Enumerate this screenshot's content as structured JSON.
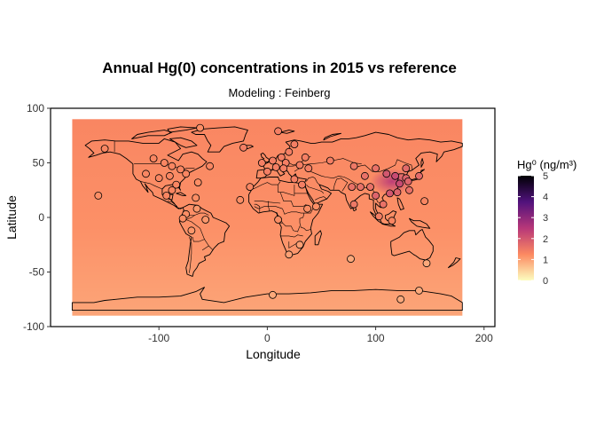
{
  "chart_data": {
    "type": "heatmap",
    "title": "Annual Hg(0) concentrations in 2015 vs reference",
    "subtitle": "Modeling : Feinberg",
    "xlabel": "Longitude",
    "ylabel": "Latitude",
    "xlim": [
      -200,
      210
    ],
    "ylim": [
      -100,
      100
    ],
    "x_ticks": [
      -100,
      0,
      100,
      200
    ],
    "y_ticks": [
      -100,
      -50,
      0,
      50,
      100
    ],
    "legend": {
      "title": "Hg⁰ (ng/m³)",
      "ticks": [
        0,
        1,
        2,
        3,
        4,
        5
      ],
      "range": [
        0,
        5
      ],
      "placement": "right",
      "colors": [
        "#fcfdbf",
        "#fc8961",
        "#b73779",
        "#51127c",
        "#000004"
      ]
    },
    "field": {
      "north_value": 1.3,
      "south_value": 0.95,
      "hotspot": {
        "lon": 115,
        "lat": 33,
        "value": 2.4
      }
    },
    "stations": [
      {
        "lon": -62,
        "lat": 82,
        "value": 1.2
      },
      {
        "lon": -150,
        "lat": 63,
        "value": 1.3
      },
      {
        "lon": -105,
        "lat": 54,
        "value": 1.3
      },
      {
        "lon": -95,
        "lat": 50,
        "value": 1.3
      },
      {
        "lon": -88,
        "lat": 47,
        "value": 1.3
      },
      {
        "lon": -80,
        "lat": 44,
        "value": 1.3
      },
      {
        "lon": -75,
        "lat": 40,
        "value": 1.3
      },
      {
        "lon": -90,
        "lat": 38,
        "value": 1.3
      },
      {
        "lon": -100,
        "lat": 36,
        "value": 1.3
      },
      {
        "lon": -112,
        "lat": 40,
        "value": 1.3
      },
      {
        "lon": -84,
        "lat": 30,
        "value": 1.3
      },
      {
        "lon": -88,
        "lat": 25,
        "value": 1.3
      },
      {
        "lon": -93,
        "lat": 20,
        "value": 1.3
      },
      {
        "lon": -156,
        "lat": 20,
        "value": 1.2
      },
      {
        "lon": -66,
        "lat": 18,
        "value": 1.2
      },
      {
        "lon": -64,
        "lat": 32,
        "value": 1.2
      },
      {
        "lon": -53,
        "lat": 47,
        "value": 1.3
      },
      {
        "lon": -65,
        "lat": 8,
        "value": 1.1
      },
      {
        "lon": -75,
        "lat": 3,
        "value": 1.2
      },
      {
        "lon": -78,
        "lat": -1,
        "value": 1.2
      },
      {
        "lon": -70,
        "lat": -12,
        "value": 1.1
      },
      {
        "lon": -57,
        "lat": -2,
        "value": 1.1
      },
      {
        "lon": -22,
        "lat": 64,
        "value": 1.4
      },
      {
        "lon": 10,
        "lat": 79,
        "value": 1.4
      },
      {
        "lon": -5,
        "lat": 50,
        "value": 1.4
      },
      {
        "lon": 5,
        "lat": 52,
        "value": 1.4
      },
      {
        "lon": 13,
        "lat": 55,
        "value": 1.4
      },
      {
        "lon": 17,
        "lat": 50,
        "value": 1.4
      },
      {
        "lon": 20,
        "lat": 60,
        "value": 1.4
      },
      {
        "lon": 25,
        "lat": 67,
        "value": 1.4
      },
      {
        "lon": 15,
        "lat": 45,
        "value": 1.4
      },
      {
        "lon": 8,
        "lat": 46,
        "value": 1.4
      },
      {
        "lon": 0,
        "lat": 42,
        "value": 1.4
      },
      {
        "lon": 30,
        "lat": 48,
        "value": 1.4
      },
      {
        "lon": 35,
        "lat": 55,
        "value": 1.4
      },
      {
        "lon": 38,
        "lat": 45,
        "value": 1.4
      },
      {
        "lon": 58,
        "lat": 52,
        "value": 1.4
      },
      {
        "lon": -16,
        "lat": 28,
        "value": 1.3
      },
      {
        "lon": 25,
        "lat": 35,
        "value": 1.4
      },
      {
        "lon": 32,
        "lat": 30,
        "value": 1.4
      },
      {
        "lon": 80,
        "lat": 47,
        "value": 1.5
      },
      {
        "lon": 90,
        "lat": 38,
        "value": 1.6
      },
      {
        "lon": 100,
        "lat": 45,
        "value": 1.6
      },
      {
        "lon": 110,
        "lat": 40,
        "value": 2.0
      },
      {
        "lon": 118,
        "lat": 38,
        "value": 2.2
      },
      {
        "lon": 122,
        "lat": 31,
        "value": 2.2
      },
      {
        "lon": 128,
        "lat": 36,
        "value": 1.8
      },
      {
        "lon": 140,
        "lat": 38,
        "value": 1.7
      },
      {
        "lon": 131,
        "lat": 25,
        "value": 1.6
      },
      {
        "lon": 120,
        "lat": 23,
        "value": 1.8
      },
      {
        "lon": 113,
        "lat": 22,
        "value": 2.0
      },
      {
        "lon": 100,
        "lat": 20,
        "value": 1.8
      },
      {
        "lon": 80,
        "lat": 12,
        "value": 1.5
      },
      {
        "lon": 78,
        "lat": 28,
        "value": 1.6
      },
      {
        "lon": 86,
        "lat": 28,
        "value": 1.6
      },
      {
        "lon": 95,
        "lat": 28,
        "value": 1.6
      },
      {
        "lon": 107,
        "lat": 12,
        "value": 1.6
      },
      {
        "lon": 103,
        "lat": 1,
        "value": 1.4
      },
      {
        "lon": 115,
        "lat": -3,
        "value": 1.3
      },
      {
        "lon": 145,
        "lat": 15,
        "value": 1.3
      },
      {
        "lon": 130,
        "lat": 33,
        "value": 1.8
      },
      {
        "lon": 128,
        "lat": 45,
        "value": 1.7
      },
      {
        "lon": -25,
        "lat": 16,
        "value": 1.2
      },
      {
        "lon": 20,
        "lat": -34,
        "value": 1.0
      },
      {
        "lon": 30,
        "lat": -25,
        "value": 1.0
      },
      {
        "lon": 147,
        "lat": -42,
        "value": 0.9
      },
      {
        "lon": 77,
        "lat": -38,
        "value": 0.9
      },
      {
        "lon": 10,
        "lat": -2,
        "value": 1.2
      },
      {
        "lon": 45,
        "lat": 10,
        "value": 1.2
      },
      {
        "lon": 5,
        "lat": -71,
        "value": 0.9
      },
      {
        "lon": 140,
        "lat": -67,
        "value": 0.9
      },
      {
        "lon": 123,
        "lat": -75,
        "value": 0.9
      },
      {
        "lon": 37,
        "lat": 8,
        "value": 1.2
      }
    ]
  }
}
